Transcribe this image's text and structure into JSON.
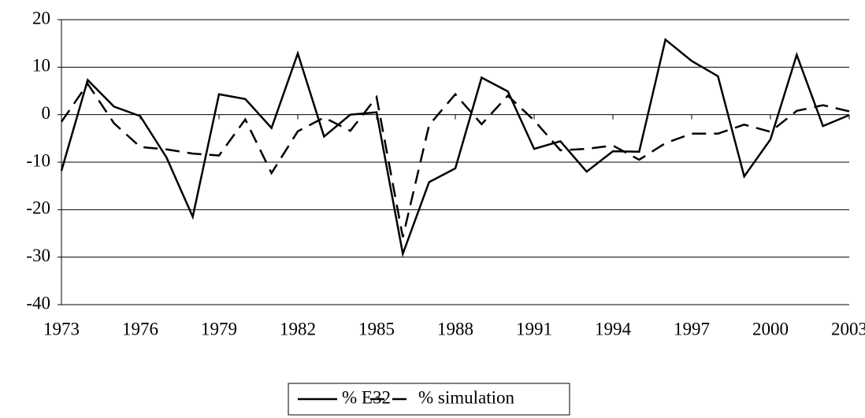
{
  "chart_data": {
    "type": "line",
    "x": [
      1973,
      1974,
      1975,
      1976,
      1977,
      1978,
      1979,
      1980,
      1981,
      1982,
      1983,
      1984,
      1985,
      1986,
      1987,
      1988,
      1989,
      1990,
      1991,
      1992,
      1993,
      1994,
      1995,
      1996,
      1997,
      1998,
      1999,
      2000,
      2001,
      2002,
      2003
    ],
    "series": [
      {
        "name": "% E32",
        "color": "#000000",
        "dash": "solid",
        "values": [
          -11.8,
          7.3,
          1.7,
          -0.3,
          -9,
          -21.5,
          4.3,
          3.3,
          -2.8,
          12.9,
          -4.6,
          0,
          0.5,
          -29.3,
          -14.2,
          -11.3,
          7.8,
          4.9,
          -7.2,
          -5.6,
          -12,
          -7.7,
          -7.8,
          15.8,
          11.3,
          8.1,
          -13,
          -5.2,
          12.6,
          -2.4,
          -0.1
        ]
      },
      {
        "name": "% simulation",
        "color": "#000000",
        "dash": "dashed",
        "values": [
          -1.5,
          6.5,
          -1.8,
          -6.8,
          -7.3,
          -8.2,
          -8.6,
          -1,
          -12.3,
          -3.5,
          -0.6,
          -3.4,
          3.7,
          -25.8,
          -2.2,
          4.3,
          -2,
          4,
          -1.2,
          -7.5,
          -7.2,
          -6.5,
          -9.5,
          -6,
          -4,
          -4,
          -2.1,
          -3.6,
          0.8,
          2,
          0.7
        ]
      }
    ],
    "xlim": [
      1973,
      2003
    ],
    "xticks": [
      1973,
      1976,
      1979,
      1982,
      1985,
      1988,
      1991,
      1994,
      1997,
      2000,
      2003
    ],
    "ylim": [
      -40,
      20
    ],
    "yticks": [
      -40,
      -30,
      -20,
      -10,
      0,
      10,
      20
    ],
    "grid": true,
    "legend": "bottom"
  }
}
